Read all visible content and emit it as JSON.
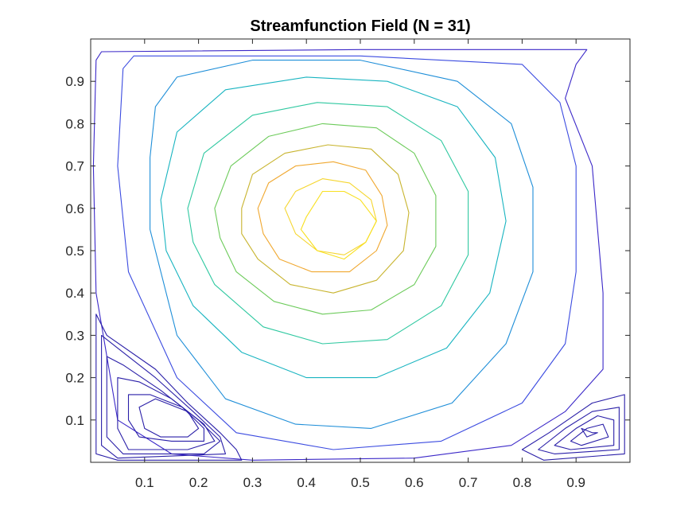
{
  "chart_data": {
    "type": "contour",
    "title": "Streamfunction Field (N = 31)",
    "xlabel": "",
    "ylabel": "",
    "xlim": [
      0,
      1
    ],
    "ylim": [
      0,
      1
    ],
    "x_ticks": [
      0.1,
      0.2,
      0.3,
      0.4,
      0.5,
      0.6,
      0.7,
      0.8,
      0.9
    ],
    "x_tick_labels": [
      "0.1",
      "0.2",
      "0.3",
      "0.4",
      "0.5",
      "0.6",
      "0.7",
      "0.8",
      "0.9"
    ],
    "y_ticks": [
      0.1,
      0.2,
      0.3,
      0.4,
      0.5,
      0.6,
      0.7,
      0.8,
      0.9
    ],
    "y_tick_labels": [
      "0.1",
      "0.2",
      "0.3",
      "0.4",
      "0.5",
      "0.6",
      "0.7",
      "0.8",
      "0.9"
    ],
    "grid": false,
    "colormap": "parula",
    "primary_vortex_center": [
      0.46,
      0.57
    ],
    "series": [
      {
        "color": "#3b28c8",
        "points": [
          [
            0.01,
            0.95
          ],
          [
            0.02,
            0.97
          ],
          [
            0.5,
            0.975
          ],
          [
            0.92,
            0.975
          ],
          [
            0.9,
            0.94
          ],
          [
            0.88,
            0.86
          ],
          [
            0.93,
            0.7
          ],
          [
            0.95,
            0.4
          ],
          [
            0.95,
            0.22
          ],
          [
            0.88,
            0.12
          ],
          [
            0.78,
            0.04
          ],
          [
            0.6,
            0.01
          ],
          [
            0.3,
            0.005
          ],
          [
            0.15,
            0.02
          ],
          [
            0.05,
            0.1
          ],
          [
            0.01,
            0.4
          ],
          [
            0.005,
            0.7
          ]
        ]
      },
      {
        "color": "#3b4be0",
        "points": [
          [
            0.06,
            0.93
          ],
          [
            0.08,
            0.96
          ],
          [
            0.5,
            0.96
          ],
          [
            0.8,
            0.94
          ],
          [
            0.87,
            0.85
          ],
          [
            0.9,
            0.7
          ],
          [
            0.9,
            0.45
          ],
          [
            0.88,
            0.28
          ],
          [
            0.8,
            0.14
          ],
          [
            0.65,
            0.05
          ],
          [
            0.45,
            0.03
          ],
          [
            0.27,
            0.07
          ],
          [
            0.16,
            0.2
          ],
          [
            0.07,
            0.45
          ],
          [
            0.05,
            0.7
          ]
        ]
      },
      {
        "color": "#1e8ed8",
        "points": [
          [
            0.12,
            0.84
          ],
          [
            0.16,
            0.91
          ],
          [
            0.3,
            0.95
          ],
          [
            0.5,
            0.95
          ],
          [
            0.68,
            0.9
          ],
          [
            0.78,
            0.8
          ],
          [
            0.82,
            0.65
          ],
          [
            0.82,
            0.45
          ],
          [
            0.77,
            0.28
          ],
          [
            0.67,
            0.14
          ],
          [
            0.52,
            0.08
          ],
          [
            0.38,
            0.09
          ],
          [
            0.25,
            0.15
          ],
          [
            0.16,
            0.3
          ],
          [
            0.11,
            0.55
          ],
          [
            0.11,
            0.72
          ]
        ]
      },
      {
        "color": "#18b4c0",
        "points": [
          [
            0.13,
            0.62
          ],
          [
            0.16,
            0.78
          ],
          [
            0.25,
            0.88
          ],
          [
            0.4,
            0.91
          ],
          [
            0.55,
            0.9
          ],
          [
            0.68,
            0.84
          ],
          [
            0.75,
            0.72
          ],
          [
            0.77,
            0.57
          ],
          [
            0.74,
            0.4
          ],
          [
            0.66,
            0.27
          ],
          [
            0.53,
            0.2
          ],
          [
            0.4,
            0.2
          ],
          [
            0.28,
            0.26
          ],
          [
            0.19,
            0.37
          ],
          [
            0.14,
            0.5
          ]
        ]
      },
      {
        "color": "#2ec8a0",
        "points": [
          [
            0.18,
            0.6
          ],
          [
            0.21,
            0.73
          ],
          [
            0.3,
            0.82
          ],
          [
            0.42,
            0.85
          ],
          [
            0.55,
            0.84
          ],
          [
            0.65,
            0.76
          ],
          [
            0.7,
            0.64
          ],
          [
            0.7,
            0.49
          ],
          [
            0.65,
            0.37
          ],
          [
            0.55,
            0.29
          ],
          [
            0.43,
            0.28
          ],
          [
            0.32,
            0.32
          ],
          [
            0.23,
            0.42
          ],
          [
            0.19,
            0.52
          ]
        ]
      },
      {
        "color": "#6ccb5a",
        "points": [
          [
            0.23,
            0.6
          ],
          [
            0.26,
            0.7
          ],
          [
            0.33,
            0.77
          ],
          [
            0.43,
            0.8
          ],
          [
            0.53,
            0.79
          ],
          [
            0.6,
            0.73
          ],
          [
            0.64,
            0.63
          ],
          [
            0.64,
            0.51
          ],
          [
            0.6,
            0.42
          ],
          [
            0.52,
            0.36
          ],
          [
            0.43,
            0.35
          ],
          [
            0.34,
            0.38
          ],
          [
            0.27,
            0.45
          ],
          [
            0.24,
            0.53
          ]
        ]
      },
      {
        "color": "#c8b42e",
        "points": [
          [
            0.28,
            0.6
          ],
          [
            0.3,
            0.68
          ],
          [
            0.36,
            0.73
          ],
          [
            0.44,
            0.75
          ],
          [
            0.52,
            0.74
          ],
          [
            0.57,
            0.68
          ],
          [
            0.59,
            0.59
          ],
          [
            0.58,
            0.5
          ],
          [
            0.53,
            0.43
          ],
          [
            0.45,
            0.4
          ],
          [
            0.37,
            0.42
          ],
          [
            0.31,
            0.48
          ],
          [
            0.28,
            0.54
          ]
        ]
      },
      {
        "color": "#f0a830",
        "points": [
          [
            0.31,
            0.6
          ],
          [
            0.33,
            0.66
          ],
          [
            0.38,
            0.7
          ],
          [
            0.45,
            0.71
          ],
          [
            0.51,
            0.69
          ],
          [
            0.54,
            0.63
          ],
          [
            0.55,
            0.56
          ],
          [
            0.53,
            0.5
          ],
          [
            0.48,
            0.45
          ],
          [
            0.41,
            0.45
          ],
          [
            0.35,
            0.48
          ],
          [
            0.32,
            0.54
          ]
        ]
      },
      {
        "color": "#f5d630",
        "points": [
          [
            0.36,
            0.6
          ],
          [
            0.38,
            0.64
          ],
          [
            0.43,
            0.67
          ],
          [
            0.48,
            0.66
          ],
          [
            0.52,
            0.62
          ],
          [
            0.53,
            0.57
          ],
          [
            0.51,
            0.52
          ],
          [
            0.47,
            0.49
          ],
          [
            0.42,
            0.5
          ],
          [
            0.38,
            0.54
          ]
        ]
      },
      {
        "color": "#f8e020",
        "points": [
          [
            0.4,
            0.58
          ],
          [
            0.43,
            0.64
          ],
          [
            0.47,
            0.64
          ],
          [
            0.5,
            0.62
          ],
          [
            0.53,
            0.57
          ],
          [
            0.51,
            0.52
          ],
          [
            0.47,
            0.48
          ],
          [
            0.42,
            0.5
          ],
          [
            0.39,
            0.55
          ]
        ]
      },
      {
        "color": "#2a1fa8",
        "points": [
          [
            0.01,
            0.35
          ],
          [
            0.03,
            0.3
          ],
          [
            0.12,
            0.22
          ],
          [
            0.18,
            0.14
          ],
          [
            0.24,
            0.07
          ],
          [
            0.27,
            0.03
          ],
          [
            0.28,
            0.005
          ],
          [
            0.05,
            0.005
          ],
          [
            0.01,
            0.02
          ]
        ]
      },
      {
        "color": "#2a1fa8",
        "points": [
          [
            0.02,
            0.3
          ],
          [
            0.05,
            0.27
          ],
          [
            0.12,
            0.2
          ],
          [
            0.19,
            0.12
          ],
          [
            0.24,
            0.06
          ],
          [
            0.25,
            0.02
          ],
          [
            0.05,
            0.01
          ],
          [
            0.02,
            0.04
          ]
        ]
      },
      {
        "color": "#2a1fa8",
        "points": [
          [
            0.03,
            0.25
          ],
          [
            0.06,
            0.23
          ],
          [
            0.13,
            0.17
          ],
          [
            0.2,
            0.1
          ],
          [
            0.24,
            0.05
          ],
          [
            0.21,
            0.02
          ],
          [
            0.06,
            0.02
          ],
          [
            0.03,
            0.06
          ]
        ]
      },
      {
        "color": "#2a1fa8",
        "points": [
          [
            0.05,
            0.2
          ],
          [
            0.09,
            0.19
          ],
          [
            0.15,
            0.15
          ],
          [
            0.21,
            0.09
          ],
          [
            0.23,
            0.05
          ],
          [
            0.18,
            0.03
          ],
          [
            0.07,
            0.03
          ],
          [
            0.05,
            0.08
          ]
        ]
      },
      {
        "color": "#2a1fa8",
        "points": [
          [
            0.07,
            0.16
          ],
          [
            0.11,
            0.16
          ],
          [
            0.17,
            0.13
          ],
          [
            0.21,
            0.08
          ],
          [
            0.21,
            0.05
          ],
          [
            0.15,
            0.05
          ],
          [
            0.09,
            0.06
          ],
          [
            0.07,
            0.1
          ]
        ]
      },
      {
        "color": "#2a1fa8",
        "points": [
          [
            0.09,
            0.13
          ],
          [
            0.12,
            0.15
          ],
          [
            0.18,
            0.12
          ],
          [
            0.2,
            0.08
          ],
          [
            0.18,
            0.06
          ],
          [
            0.13,
            0.06
          ],
          [
            0.1,
            0.08
          ]
        ]
      },
      {
        "color": "#2a1fa8",
        "points": [
          [
            0.8,
            0.03
          ],
          [
            0.85,
            0.07
          ],
          [
            0.93,
            0.14
          ],
          [
            0.99,
            0.16
          ],
          [
            0.99,
            0.02
          ],
          [
            0.84,
            0.005
          ]
        ]
      },
      {
        "color": "#2a1fa8",
        "points": [
          [
            0.83,
            0.03
          ],
          [
            0.88,
            0.08
          ],
          [
            0.93,
            0.12
          ],
          [
            0.98,
            0.13
          ],
          [
            0.98,
            0.03
          ],
          [
            0.86,
            0.02
          ]
        ]
      },
      {
        "color": "#2a1fa8",
        "points": [
          [
            0.86,
            0.04
          ],
          [
            0.9,
            0.08
          ],
          [
            0.94,
            0.11
          ],
          [
            0.97,
            0.1
          ],
          [
            0.97,
            0.04
          ],
          [
            0.89,
            0.03
          ]
        ]
      },
      {
        "color": "#2a1fa8",
        "points": [
          [
            0.89,
            0.05
          ],
          [
            0.92,
            0.08
          ],
          [
            0.95,
            0.09
          ],
          [
            0.96,
            0.06
          ],
          [
            0.91,
            0.04
          ]
        ]
      },
      {
        "color": "#2a1fa8",
        "points": [
          [
            0.91,
            0.08
          ],
          [
            0.93,
            0.07
          ],
          [
            0.94,
            0.07
          ],
          [
            0.92,
            0.06
          ]
        ]
      }
    ]
  }
}
